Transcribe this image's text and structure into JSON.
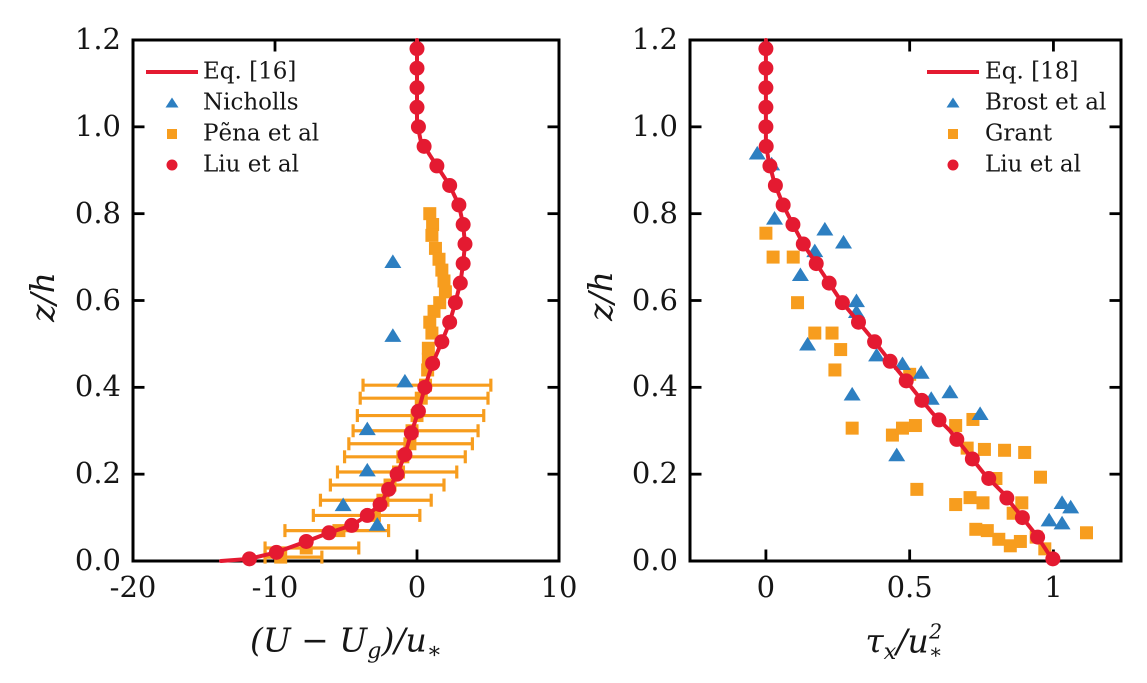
{
  "colors": {
    "red": "#e41a31",
    "orange": "#f79d1e",
    "blue": "#2d7fc1",
    "axis": "#000000",
    "text": "#161616"
  },
  "chart_data": [
    {
      "type": "line",
      "title": "",
      "xlim": [
        -20,
        10
      ],
      "ylim": [
        0,
        1.2
      ],
      "xlabel_tokens": [
        {
          "t": "(U − U"
        },
        {
          "t": "g",
          "sub": 1
        },
        {
          "t": ")/u"
        },
        {
          "t": "∗",
          "sub": 1
        }
      ],
      "ylabel_tokens": [
        {
          "t": "z/h"
        }
      ],
      "xticks": {
        "values": [
          -20,
          -10,
          0,
          10
        ],
        "labels": [
          "-20",
          "-10",
          "0",
          "10"
        ]
      },
      "yticks": {
        "values": [
          0,
          0.2,
          0.4,
          0.6,
          0.8,
          1.0,
          1.2
        ],
        "labels": [
          "0.0",
          "0.2",
          "0.4",
          "0.6",
          "0.8",
          "1.0",
          "1.2"
        ]
      },
      "legend": {
        "items": [
          {
            "label": "Eq. [16]",
            "type": "line",
            "color": "red"
          },
          {
            "label": "Nicholls",
            "type": "triangle",
            "color": "blue"
          },
          {
            "label": "Pẽna et al",
            "type": "square",
            "color": "orange"
          },
          {
            "label": "Liu et al",
            "type": "circle",
            "color": "red"
          }
        ]
      },
      "series": [
        {
          "name": "Eq. [16]",
          "kind": "line",
          "color": "red",
          "points": [
            [
              0,
              1.2
            ],
            [
              0,
              1.01
            ],
            [
              0.25,
              0.97
            ],
            [
              0.9,
              0.935
            ],
            [
              1.4,
              0.91
            ],
            [
              2.3,
              0.865
            ],
            [
              2.95,
              0.82
            ],
            [
              3.25,
              0.775
            ],
            [
              3.38,
              0.73
            ],
            [
              3.25,
              0.685
            ],
            [
              3.05,
              0.64
            ],
            [
              2.7,
              0.595
            ],
            [
              2.3,
              0.55
            ],
            [
              1.75,
              0.505
            ],
            [
              1.1,
              0.455
            ],
            [
              0.55,
              0.4
            ],
            [
              0.1,
              0.345
            ],
            [
              -0.4,
              0.295
            ],
            [
              -0.85,
              0.245
            ],
            [
              -1.4,
              0.2
            ],
            [
              -2.0,
              0.165
            ],
            [
              -2.6,
              0.13
            ],
            [
              -3.5,
              0.105
            ],
            [
              -4.6,
              0.082
            ],
            [
              -6.2,
              0.065
            ],
            [
              -7.8,
              0.045
            ],
            [
              -9.9,
              0.02
            ],
            [
              -11.8,
              0.005
            ],
            [
              -13.8,
              0.0
            ]
          ]
        },
        {
          "name": "Nicholls",
          "kind": "scatter",
          "marker": "triangle",
          "color": "blue",
          "points": [
            [
              -1.7,
              0.69
            ],
            [
              -1.7,
              0.52
            ],
            [
              -0.85,
              0.415
            ],
            [
              -3.5,
              0.305
            ],
            [
              -3.5,
              0.21
            ],
            [
              -5.2,
              0.13
            ],
            [
              -2.8,
              0.085
            ]
          ]
        },
        {
          "name": "Pẽna et al",
          "kind": "scatter",
          "marker": "square",
          "color": "orange",
          "points": [
            [
              0.9,
              0.8
            ],
            [
              1.1,
              0.775
            ],
            [
              1.05,
              0.75
            ],
            [
              1.3,
              0.72
            ],
            [
              1.55,
              0.695
            ],
            [
              1.75,
              0.67
            ],
            [
              1.9,
              0.645
            ],
            [
              2.0,
              0.62
            ],
            [
              1.6,
              0.595
            ],
            [
              1.2,
              0.575
            ],
            [
              0.9,
              0.55
            ],
            [
              1.05,
              0.525
            ],
            [
              0.8,
              0.49
            ],
            [
              0.8,
              0.465
            ],
            [
              0.75,
              0.44
            ]
          ],
          "xerr": [
            [
              0.6,
              0.405,
              -3.8,
              5.2
            ],
            [
              0.3,
              0.375,
              -4.0,
              5.0
            ],
            [
              0.0,
              0.335,
              -4.2,
              4.7
            ],
            [
              -0.35,
              0.3,
              -4.5,
              4.3
            ],
            [
              -0.5,
              0.27,
              -4.8,
              3.9
            ],
            [
              -1.0,
              0.24,
              -5.1,
              3.4
            ],
            [
              -1.3,
              0.205,
              -5.6,
              2.8
            ],
            [
              -1.9,
              0.175,
              -6.1,
              1.9
            ],
            [
              -2.4,
              0.14,
              -6.8,
              1.0
            ],
            [
              -3.0,
              0.105,
              -7.3,
              0.2
            ],
            [
              -5.5,
              0.07,
              -9.3,
              -2.0
            ],
            [
              -7.8,
              0.03,
              -10.7,
              -4.1
            ],
            [
              -9.6,
              0.009,
              -10.7,
              -6.7
            ]
          ]
        },
        {
          "name": "Liu et al",
          "kind": "scatter",
          "marker": "circle",
          "color": "red",
          "points": [
            [
              0,
              1.18
            ],
            [
              0,
              1.135
            ],
            [
              0,
              1.09
            ],
            [
              0,
              1.045
            ],
            [
              0.1,
              1.0
            ],
            [
              0.5,
              0.955
            ],
            [
              1.4,
              0.91
            ],
            [
              2.3,
              0.865
            ],
            [
              2.95,
              0.82
            ],
            [
              3.25,
              0.775
            ],
            [
              3.38,
              0.73
            ],
            [
              3.25,
              0.685
            ],
            [
              3.05,
              0.64
            ],
            [
              2.7,
              0.595
            ],
            [
              2.3,
              0.55
            ],
            [
              1.75,
              0.505
            ],
            [
              1.1,
              0.455
            ],
            [
              0.55,
              0.4
            ],
            [
              0.1,
              0.345
            ],
            [
              -0.4,
              0.295
            ],
            [
              -0.85,
              0.245
            ],
            [
              -1.4,
              0.2
            ],
            [
              -2.0,
              0.165
            ],
            [
              -2.6,
              0.13
            ],
            [
              -3.5,
              0.105
            ],
            [
              -4.6,
              0.082
            ],
            [
              -6.2,
              0.065
            ],
            [
              -7.8,
              0.045
            ],
            [
              -9.9,
              0.02
            ],
            [
              -11.8,
              0.005
            ]
          ]
        }
      ]
    },
    {
      "type": "line",
      "title": "",
      "xlim": [
        -0.264,
        1.235
      ],
      "ylim": [
        0,
        1.2
      ],
      "xlabel_tokens": [
        {
          "t": "τ"
        },
        {
          "t": "x",
          "sub": 1
        },
        {
          "t": "/u"
        },
        {
          "stack": 1,
          "sup": "2",
          "sub": "∗"
        }
      ],
      "ylabel_tokens": [
        {
          "t": "z/h"
        }
      ],
      "xticks": {
        "values": [
          0,
          0.5,
          1
        ],
        "labels": [
          "0",
          "0.5",
          "1"
        ]
      },
      "yticks": {
        "values": [
          0,
          0.2,
          0.4,
          0.6,
          0.8,
          1.0,
          1.2
        ],
        "labels": [
          "0.0",
          "0.2",
          "0.4",
          "0.6",
          "0.8",
          "1.0",
          "1.2"
        ]
      },
      "legend": {
        "items": [
          {
            "label": "Eq. [18]",
            "type": "line",
            "color": "red"
          },
          {
            "label": "Brost et al",
            "type": "triangle",
            "color": "blue"
          },
          {
            "label": "Grant",
            "type": "square",
            "color": "orange"
          },
          {
            "label": "Liu et al",
            "type": "circle",
            "color": "red"
          }
        ]
      },
      "series": [
        {
          "name": "Eq. [18]",
          "kind": "line",
          "color": "red",
          "points": [
            [
              0,
              1.2
            ],
            [
              0,
              0.96
            ],
            [
              0.01,
              0.92
            ],
            [
              0.03,
              0.87
            ],
            [
              0.06,
              0.82
            ],
            [
              0.09,
              0.78
            ],
            [
              0.13,
              0.73
            ],
            [
              0.17,
              0.69
            ],
            [
              0.21,
              0.65
            ],
            [
              0.26,
              0.6
            ],
            [
              0.31,
              0.56
            ],
            [
              0.36,
              0.52
            ],
            [
              0.42,
              0.47
            ],
            [
              0.47,
              0.43
            ],
            [
              0.53,
              0.38
            ],
            [
              0.58,
              0.34
            ],
            [
              0.64,
              0.3
            ],
            [
              0.7,
              0.25
            ],
            [
              0.76,
              0.2
            ],
            [
              0.82,
              0.16
            ],
            [
              0.88,
              0.11
            ],
            [
              0.94,
              0.06
            ],
            [
              1.0,
              0.0
            ]
          ]
        },
        {
          "name": "Brost et al",
          "kind": "scatter",
          "marker": "triangle",
          "color": "blue",
          "points": [
            [
              -0.03,
              0.94
            ],
            [
              0.02,
              0.915
            ],
            [
              0.03,
              0.79
            ],
            [
              0.205,
              0.765
            ],
            [
              0.27,
              0.735
            ],
            [
              0.17,
              0.715
            ],
            [
              0.12,
              0.66
            ],
            [
              0.315,
              0.6
            ],
            [
              0.315,
              0.575
            ],
            [
              0.145,
              0.5
            ],
            [
              0.385,
              0.475
            ],
            [
              0.475,
              0.455
            ],
            [
              0.54,
              0.435
            ],
            [
              0.3,
              0.385
            ],
            [
              0.575,
              0.375
            ],
            [
              0.64,
              0.39
            ],
            [
              0.745,
              0.34
            ],
            [
              0.455,
              0.245
            ],
            [
              1.03,
              0.135
            ],
            [
              1.06,
              0.125
            ],
            [
              0.985,
              0.095
            ],
            [
              1.03,
              0.088
            ]
          ]
        },
        {
          "name": "Grant",
          "kind": "scatter",
          "marker": "square",
          "color": "orange",
          "points": [
            [
              0.0,
              0.755
            ],
            [
              0.025,
              0.7
            ],
            [
              0.095,
              0.7
            ],
            [
              0.11,
              0.595
            ],
            [
              0.17,
              0.525
            ],
            [
              0.23,
              0.525
            ],
            [
              0.26,
              0.487
            ],
            [
              0.24,
              0.44
            ],
            [
              0.5,
              0.43
            ],
            [
              0.3,
              0.306
            ],
            [
              0.44,
              0.29
            ],
            [
              0.475,
              0.306
            ],
            [
              0.52,
              0.312
            ],
            [
              0.66,
              0.312
            ],
            [
              0.72,
              0.326
            ],
            [
              0.7,
              0.26
            ],
            [
              0.76,
              0.257
            ],
            [
              0.83,
              0.255
            ],
            [
              0.9,
              0.25
            ],
            [
              0.525,
              0.165
            ],
            [
              0.8,
              0.19
            ],
            [
              0.955,
              0.193
            ],
            [
              0.66,
              0.13
            ],
            [
              0.71,
              0.146
            ],
            [
              0.755,
              0.134
            ],
            [
              0.89,
              0.134
            ],
            [
              0.86,
              0.11
            ],
            [
              0.73,
              0.073
            ],
            [
              0.77,
              0.07
            ],
            [
              0.81,
              0.05
            ],
            [
              0.85,
              0.035
            ],
            [
              0.885,
              0.045
            ],
            [
              0.94,
              0.055
            ],
            [
              0.97,
              0.028
            ],
            [
              1.115,
              0.065
            ]
          ]
        },
        {
          "name": "Liu et al",
          "kind": "scatter",
          "marker": "circle",
          "color": "red",
          "points": [
            [
              0,
              1.18
            ],
            [
              0,
              1.135
            ],
            [
              0,
              1.09
            ],
            [
              0,
              1.045
            ],
            [
              0,
              1.0
            ],
            [
              0.001,
              0.955
            ],
            [
              0.014,
              0.91
            ],
            [
              0.033,
              0.865
            ],
            [
              0.06,
              0.82
            ],
            [
              0.094,
              0.775
            ],
            [
              0.13,
              0.73
            ],
            [
              0.175,
              0.685
            ],
            [
              0.22,
              0.64
            ],
            [
              0.266,
              0.595
            ],
            [
              0.322,
              0.55
            ],
            [
              0.378,
              0.505
            ],
            [
              0.432,
              0.46
            ],
            [
              0.488,
              0.415
            ],
            [
              0.542,
              0.37
            ],
            [
              0.602,
              0.325
            ],
            [
              0.664,
              0.28
            ],
            [
              0.718,
              0.235
            ],
            [
              0.775,
              0.19
            ],
            [
              0.838,
              0.145
            ],
            [
              0.892,
              0.1
            ],
            [
              0.945,
              0.055
            ],
            [
              0.998,
              0.005
            ]
          ]
        }
      ]
    }
  ]
}
